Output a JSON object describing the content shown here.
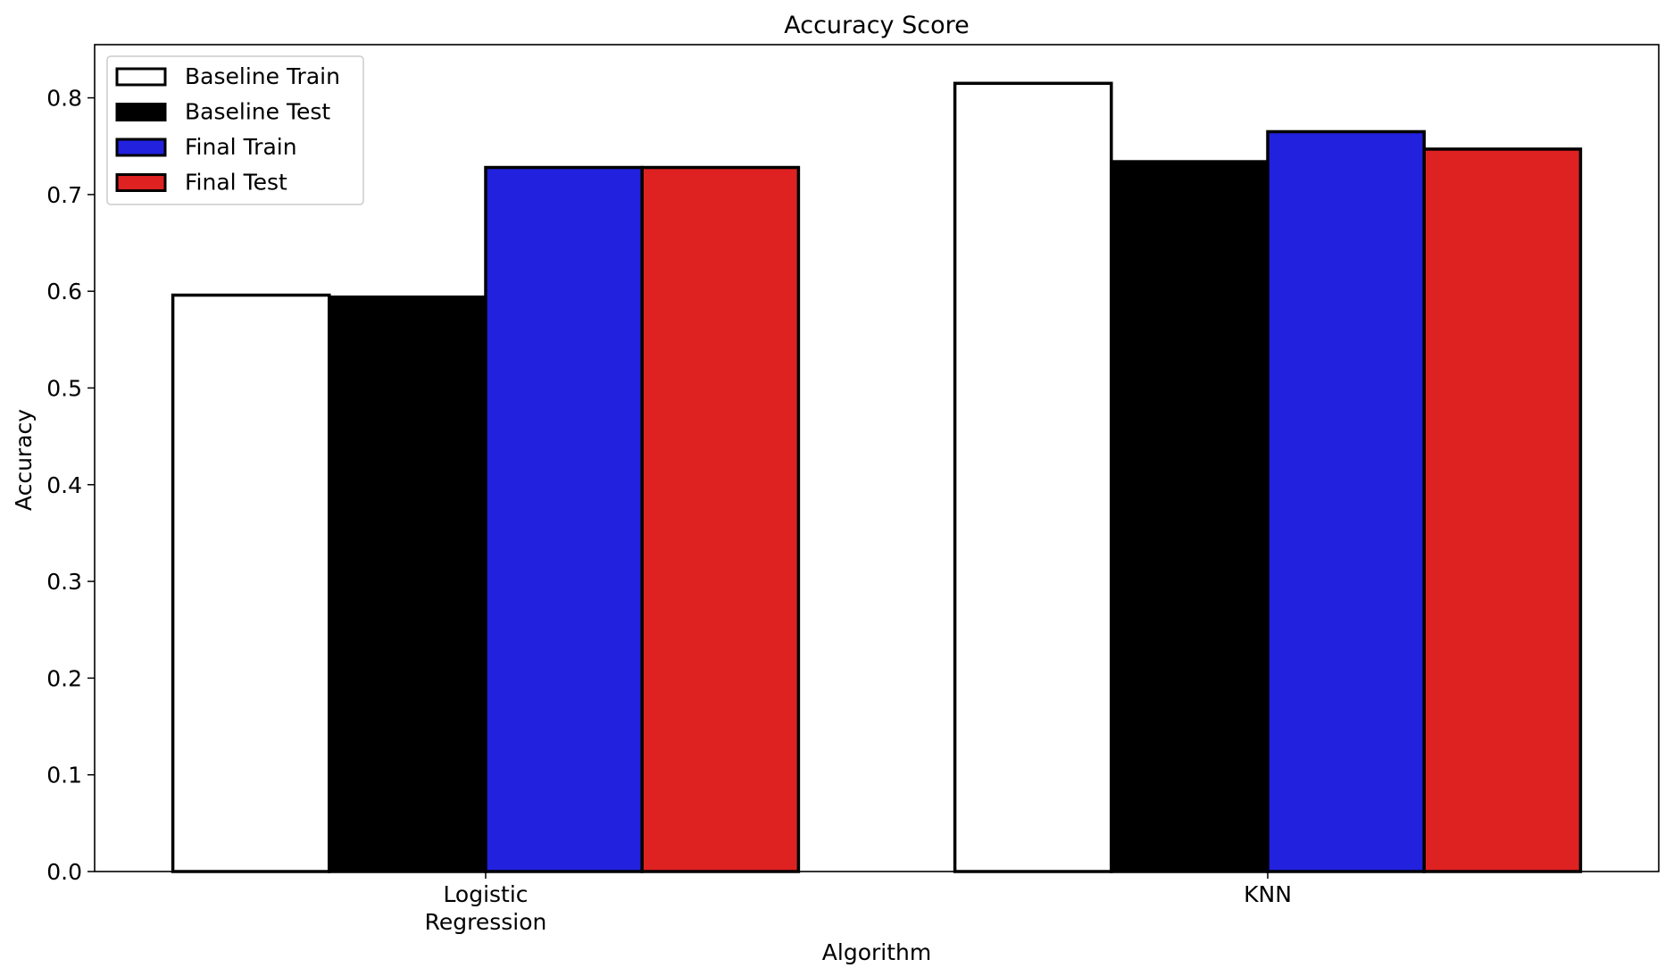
{
  "chart_data": {
    "type": "bar",
    "title": "Accuracy Score",
    "xlabel": "Algorithm",
    "ylabel": "Accuracy",
    "categories": [
      [
        "Logistic",
        "Regression"
      ],
      [
        "KNN"
      ]
    ],
    "series": [
      {
        "name": "Baseline Train",
        "values": [
          0.596,
          0.815
        ],
        "color": "#ffffff"
      },
      {
        "name": "Baseline Test",
        "values": [
          0.594,
          0.734
        ],
        "color": "#000000"
      },
      {
        "name": "Final Train",
        "values": [
          0.728,
          0.765
        ],
        "color": "#2121de"
      },
      {
        "name": "Final Test",
        "values": [
          0.728,
          0.747
        ],
        "color": "#de2121"
      }
    ],
    "ylim": [
      0,
      0.855
    ],
    "yticks": [
      "0.0",
      "0.1",
      "0.2",
      "0.3",
      "0.4",
      "0.5",
      "0.6",
      "0.7",
      "0.8"
    ],
    "grid": false,
    "legend_position": "top-left",
    "edge_color": "#000000"
  }
}
